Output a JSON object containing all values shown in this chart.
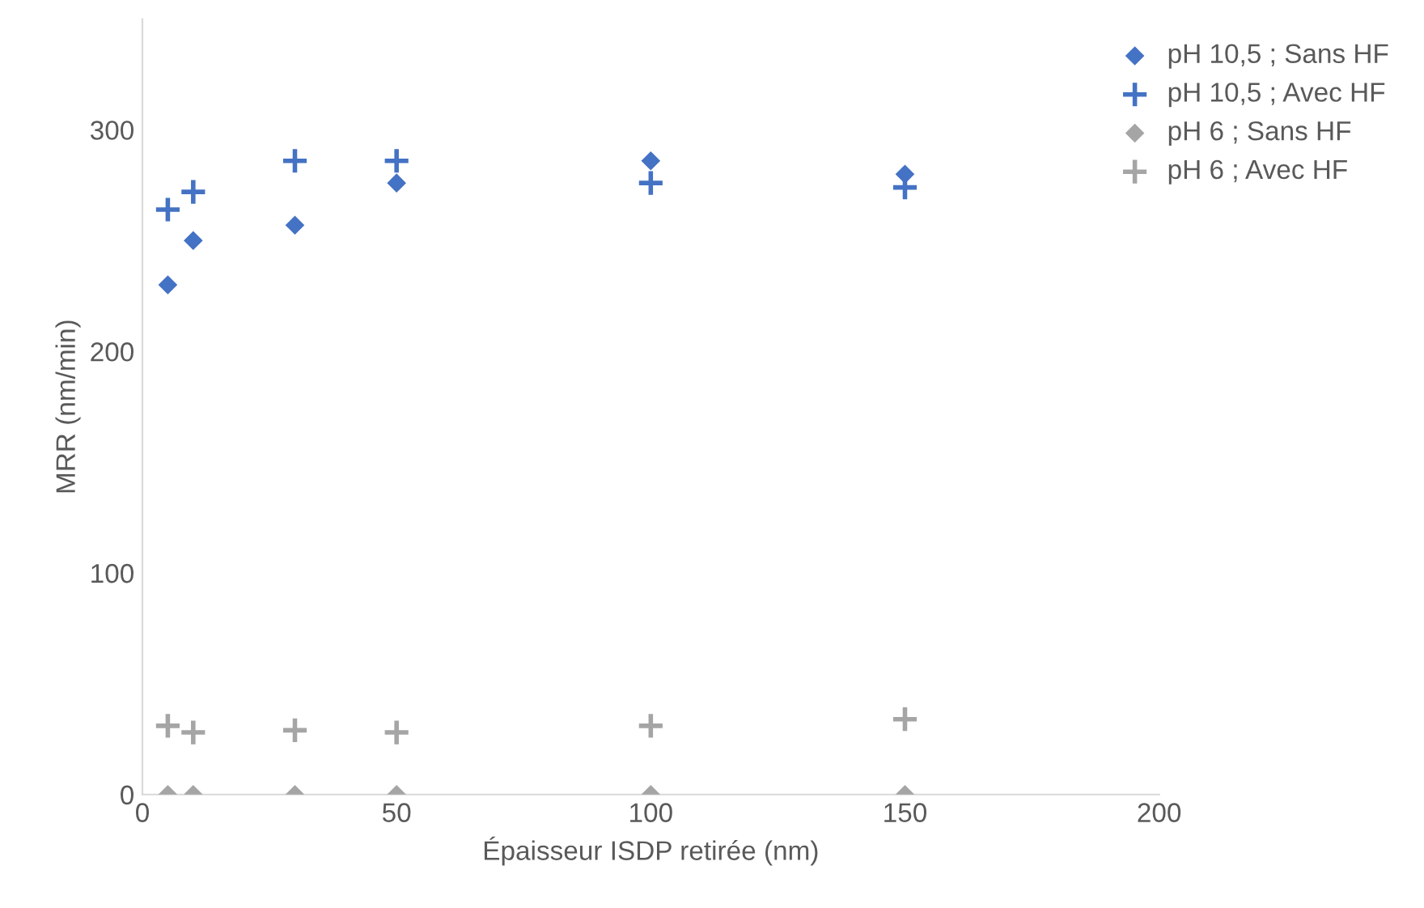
{
  "chart_data": {
    "type": "scatter",
    "xlabel": "Épaisseur ISDP retirée (nm)",
    "ylabel": "MRR (nm/min)",
    "x": [
      5,
      10,
      30,
      50,
      100,
      150
    ],
    "series": [
      {
        "name": "pH 10,5 ; Sans HF",
        "color": "#4472c4",
        "marker": "diamond",
        "values": [
          230,
          250,
          257,
          276,
          286,
          280
        ]
      },
      {
        "name": "pH 10,5 ; Avec HF",
        "color": "#4472c4",
        "marker": "cross",
        "values": [
          264,
          272,
          286,
          286,
          276,
          274
        ]
      },
      {
        "name": "pH 6 ; Sans HF",
        "color": "#a5a5a5",
        "marker": "diamond",
        "values": [
          0,
          0,
          0,
          0,
          0,
          0
        ]
      },
      {
        "name": "pH 6 ; Avec HF",
        "color": "#a5a5a5",
        "marker": "cross",
        "values": [
          31,
          28,
          29,
          28,
          31,
          34
        ]
      }
    ],
    "xlim": [
      0,
      200
    ],
    "xticks": [
      0,
      50,
      100,
      150,
      200
    ],
    "ylim": [
      0,
      350
    ],
    "yticks": [
      0,
      100,
      200,
      300
    ],
    "grid": false,
    "legend": "top right"
  }
}
